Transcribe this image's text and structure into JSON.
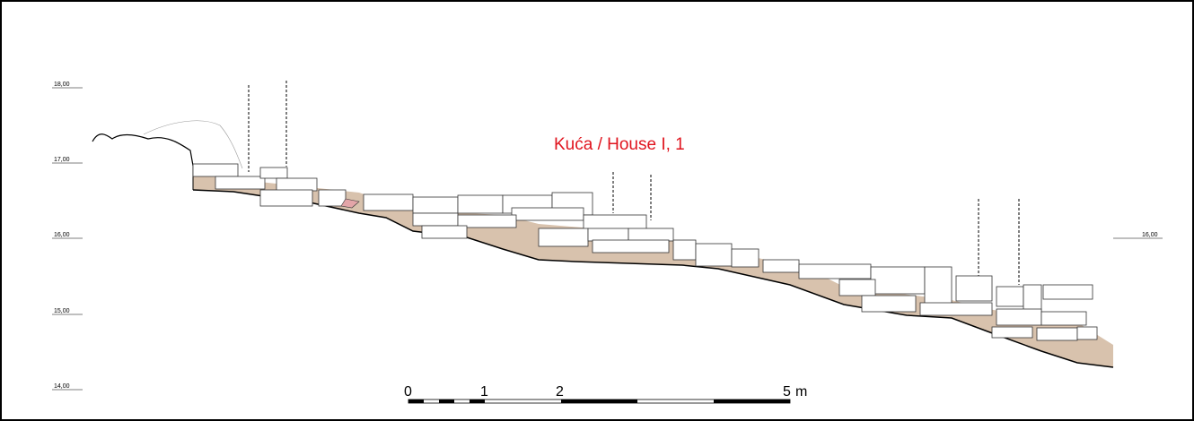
{
  "header": {
    "title": "Kuća / House  I, 1"
  },
  "elevations_left": [
    "18,00",
    "17,00",
    "16,00",
    "15,00",
    "14,00"
  ],
  "elevations_right": [
    "16,00"
  ],
  "scale": {
    "labels": [
      "0",
      "1",
      "2",
      "5"
    ],
    "unit": "m"
  }
}
